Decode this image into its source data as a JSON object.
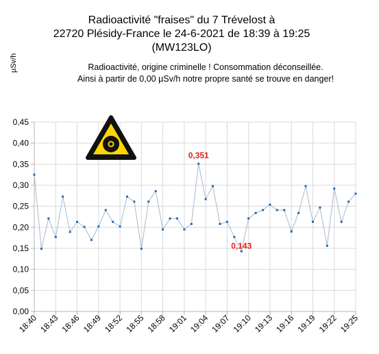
{
  "chart_data": {
    "type": "line",
    "title_lines": [
      "Radioactivité \"fraises\" du 7 Trévelost à",
      "22720 Plésidy-France le 24-6-2021 de 18:39 à 19:25",
      "(MW123LO)"
    ],
    "subtitle_lines": [
      "Radioactivité, origine criminelle ! Consommation déconseillée.",
      "Ainsi à partir de 0,00 µSv/h notre propre santé se trouve en danger!"
    ],
    "ylabel": "µSv/h",
    "ylim": [
      0,
      0.45
    ],
    "yticks": [
      "0,00",
      "0,05",
      "0,10",
      "0,15",
      "0,20",
      "0,25",
      "0,30",
      "0,35",
      "0,40",
      "0,45"
    ],
    "xticks": [
      "18:40",
      "18:43",
      "18:46",
      "18:49",
      "18:52",
      "18:55",
      "18:58",
      "19:01",
      "19:04",
      "19:07",
      "19:10",
      "19:13",
      "19:16",
      "19:19",
      "19:22",
      "19:25"
    ],
    "grid": true,
    "line_color": "#a8b8c8",
    "marker_color": "#1f6bb5",
    "label_color": "#e0201b",
    "icon": "radiation-warning-icon",
    "series": [
      {
        "values": [
          0.325,
          0.149,
          0.221,
          0.177,
          0.273,
          0.189,
          0.213,
          0.201,
          0.17,
          0.202,
          0.241,
          0.213,
          0.202,
          0.273,
          0.261,
          0.149,
          0.261,
          0.286,
          0.195,
          0.221,
          0.221,
          0.195,
          0.208,
          0.351,
          0.267,
          0.298,
          0.208,
          0.213,
          0.177,
          0.143,
          0.221,
          0.234,
          0.241,
          0.254,
          0.241,
          0.241,
          0.19,
          0.234,
          0.298,
          0.213,
          0.247,
          0.156,
          0.292,
          0.213,
          0.261,
          0.28
        ]
      }
    ],
    "annotations": [
      {
        "index": 23,
        "text": "0,351"
      },
      {
        "index": 29,
        "text": "0,143"
      }
    ]
  }
}
